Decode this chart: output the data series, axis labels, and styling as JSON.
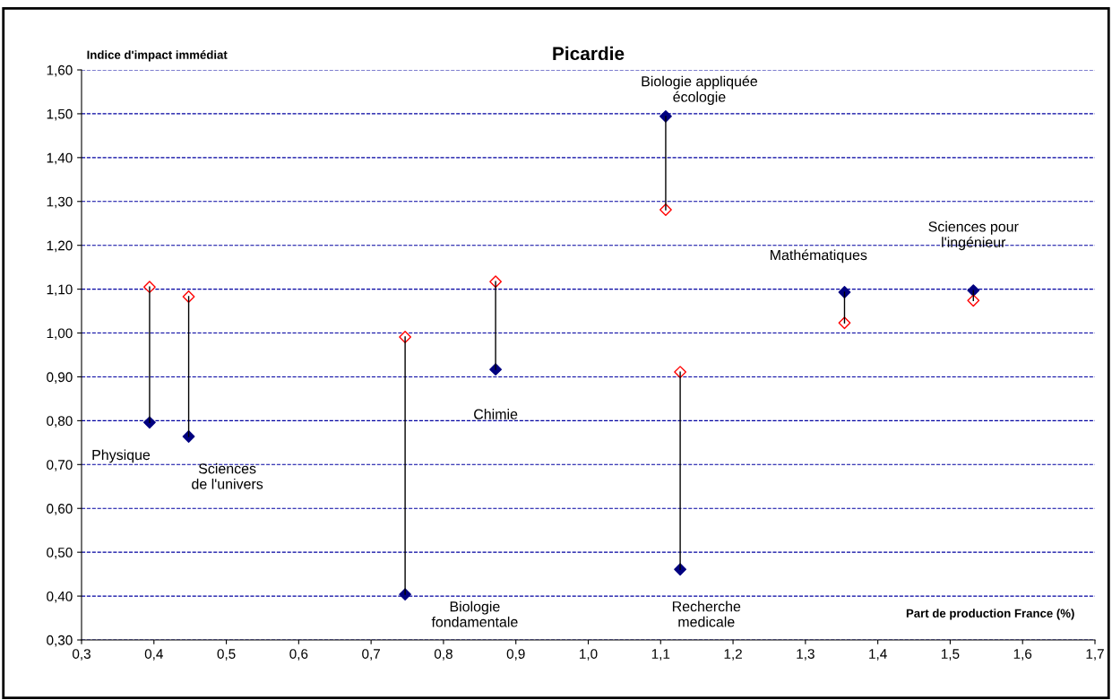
{
  "chart_data": {
    "type": "scatter",
    "title": "Picardie",
    "xlabel": "Part de production France (%)",
    "ylabel": "Indice d'impact immédiat",
    "marker": "diamond",
    "grid": "y",
    "legend": false,
    "xlim": [
      0.3,
      1.7
    ],
    "ylim": [
      0.3,
      1.6
    ],
    "xticks": [
      {
        "value": 0.3,
        "label": "0,3"
      },
      {
        "value": 0.4,
        "label": "0,4"
      },
      {
        "value": 0.5,
        "label": "0,5"
      },
      {
        "value": 0.6,
        "label": "0,6"
      },
      {
        "value": 0.7,
        "label": "0,7"
      },
      {
        "value": 0.8,
        "label": "0,8"
      },
      {
        "value": 0.9,
        "label": "0,9"
      },
      {
        "value": 1.0,
        "label": "1,0"
      },
      {
        "value": 1.1,
        "label": "1,1"
      },
      {
        "value": 1.2,
        "label": "1,2"
      },
      {
        "value": 1.3,
        "label": "1,3"
      },
      {
        "value": 1.4,
        "label": "1,4"
      },
      {
        "value": 1.5,
        "label": "1,5"
      },
      {
        "value": 1.6,
        "label": "1,6"
      },
      {
        "value": 1.7,
        "label": "1,7"
      }
    ],
    "yticks": [
      {
        "value": 0.3,
        "label": "0,30"
      },
      {
        "value": 0.4,
        "label": "0,40"
      },
      {
        "value": 0.5,
        "label": "0,50"
      },
      {
        "value": 0.6,
        "label": "0,60"
      },
      {
        "value": 0.7,
        "label": "0,70"
      },
      {
        "value": 0.8,
        "label": "0,80"
      },
      {
        "value": 0.9,
        "label": "0,90"
      },
      {
        "value": 1.0,
        "label": "1,00"
      },
      {
        "value": 1.1,
        "label": "1,10"
      },
      {
        "value": 1.2,
        "label": "1,20"
      },
      {
        "value": 1.3,
        "label": "1,30"
      },
      {
        "value": 1.4,
        "label": "1,40"
      },
      {
        "value": 1.5,
        "label": "1,50"
      },
      {
        "value": 1.6,
        "label": "1,60"
      }
    ],
    "series": [
      {
        "type": "line",
        "color": "#000000",
        "marker": "none",
        "x": [
          0.394,
          0.394
        ],
        "values": [
          0.796,
          1.105
        ]
      },
      {
        "type": "line",
        "color": "#000000",
        "marker": "none",
        "x": [
          0.448,
          0.448
        ],
        "values": [
          0.764,
          1.083
        ]
      },
      {
        "type": "line",
        "color": "#000000",
        "marker": "none",
        "x": [
          0.747,
          0.747
        ],
        "values": [
          0.404,
          0.991
        ]
      },
      {
        "type": "line",
        "color": "#000000",
        "marker": "none",
        "x": [
          0.872,
          0.872
        ],
        "values": [
          0.917,
          1.117
        ]
      },
      {
        "type": "line",
        "color": "#000000",
        "marker": "none",
        "x": [
          1.107,
          1.107
        ],
        "values": [
          1.494,
          1.281
        ]
      },
      {
        "type": "line",
        "color": "#000000",
        "marker": "none",
        "x": [
          1.127,
          1.127
        ],
        "values": [
          0.461,
          0.911
        ]
      },
      {
        "type": "line",
        "color": "#000000",
        "marker": "none",
        "x": [
          1.354,
          1.354
        ],
        "values": [
          1.093,
          1.023
        ]
      },
      {
        "type": "line",
        "color": "#000000",
        "marker": "none",
        "x": [
          1.532,
          1.532
        ],
        "values": [
          1.097,
          1.074
        ]
      },
      {
        "color": "#000080",
        "x": [
          0.394,
          0.448,
          0.747,
          0.872,
          1.107,
          1.127,
          1.354,
          1.532
        ],
        "values": [
          0.796,
          0.764,
          0.404,
          0.917,
          1.494,
          0.461,
          1.093,
          1.097
        ]
      },
      {
        "color": "#ff0000",
        "x": [
          0.394,
          0.448,
          0.747,
          0.872,
          1.107,
          1.127,
          1.354,
          1.532
        ],
        "values": [
          1.105,
          1.083,
          0.991,
          1.117,
          1.281,
          0.911,
          1.023,
          1.074
        ]
      }
    ],
    "annotations": [
      {
        "text": "Physique",
        "x": 0.394,
        "y": 0.796
      },
      {
        "text": "Sciences\nde l'univers",
        "x": 0.448,
        "y": 0.764
      },
      {
        "text": "Biologie\nfondamentale",
        "x": 0.747,
        "y": 0.404
      },
      {
        "text": "Chimie",
        "x": 0.872,
        "y": 0.917
      },
      {
        "text": "Biologie appliquée\nécologie",
        "x": 1.107,
        "y": 1.494
      },
      {
        "text": "Recherche\nmedicale",
        "x": 1.127,
        "y": 0.461
      },
      {
        "text": "Mathématiques",
        "x": 1.354,
        "y": 1.093
      },
      {
        "text": "Sciences pour\nl'ingénieur",
        "x": 1.532,
        "y": 1.097
      }
    ]
  }
}
